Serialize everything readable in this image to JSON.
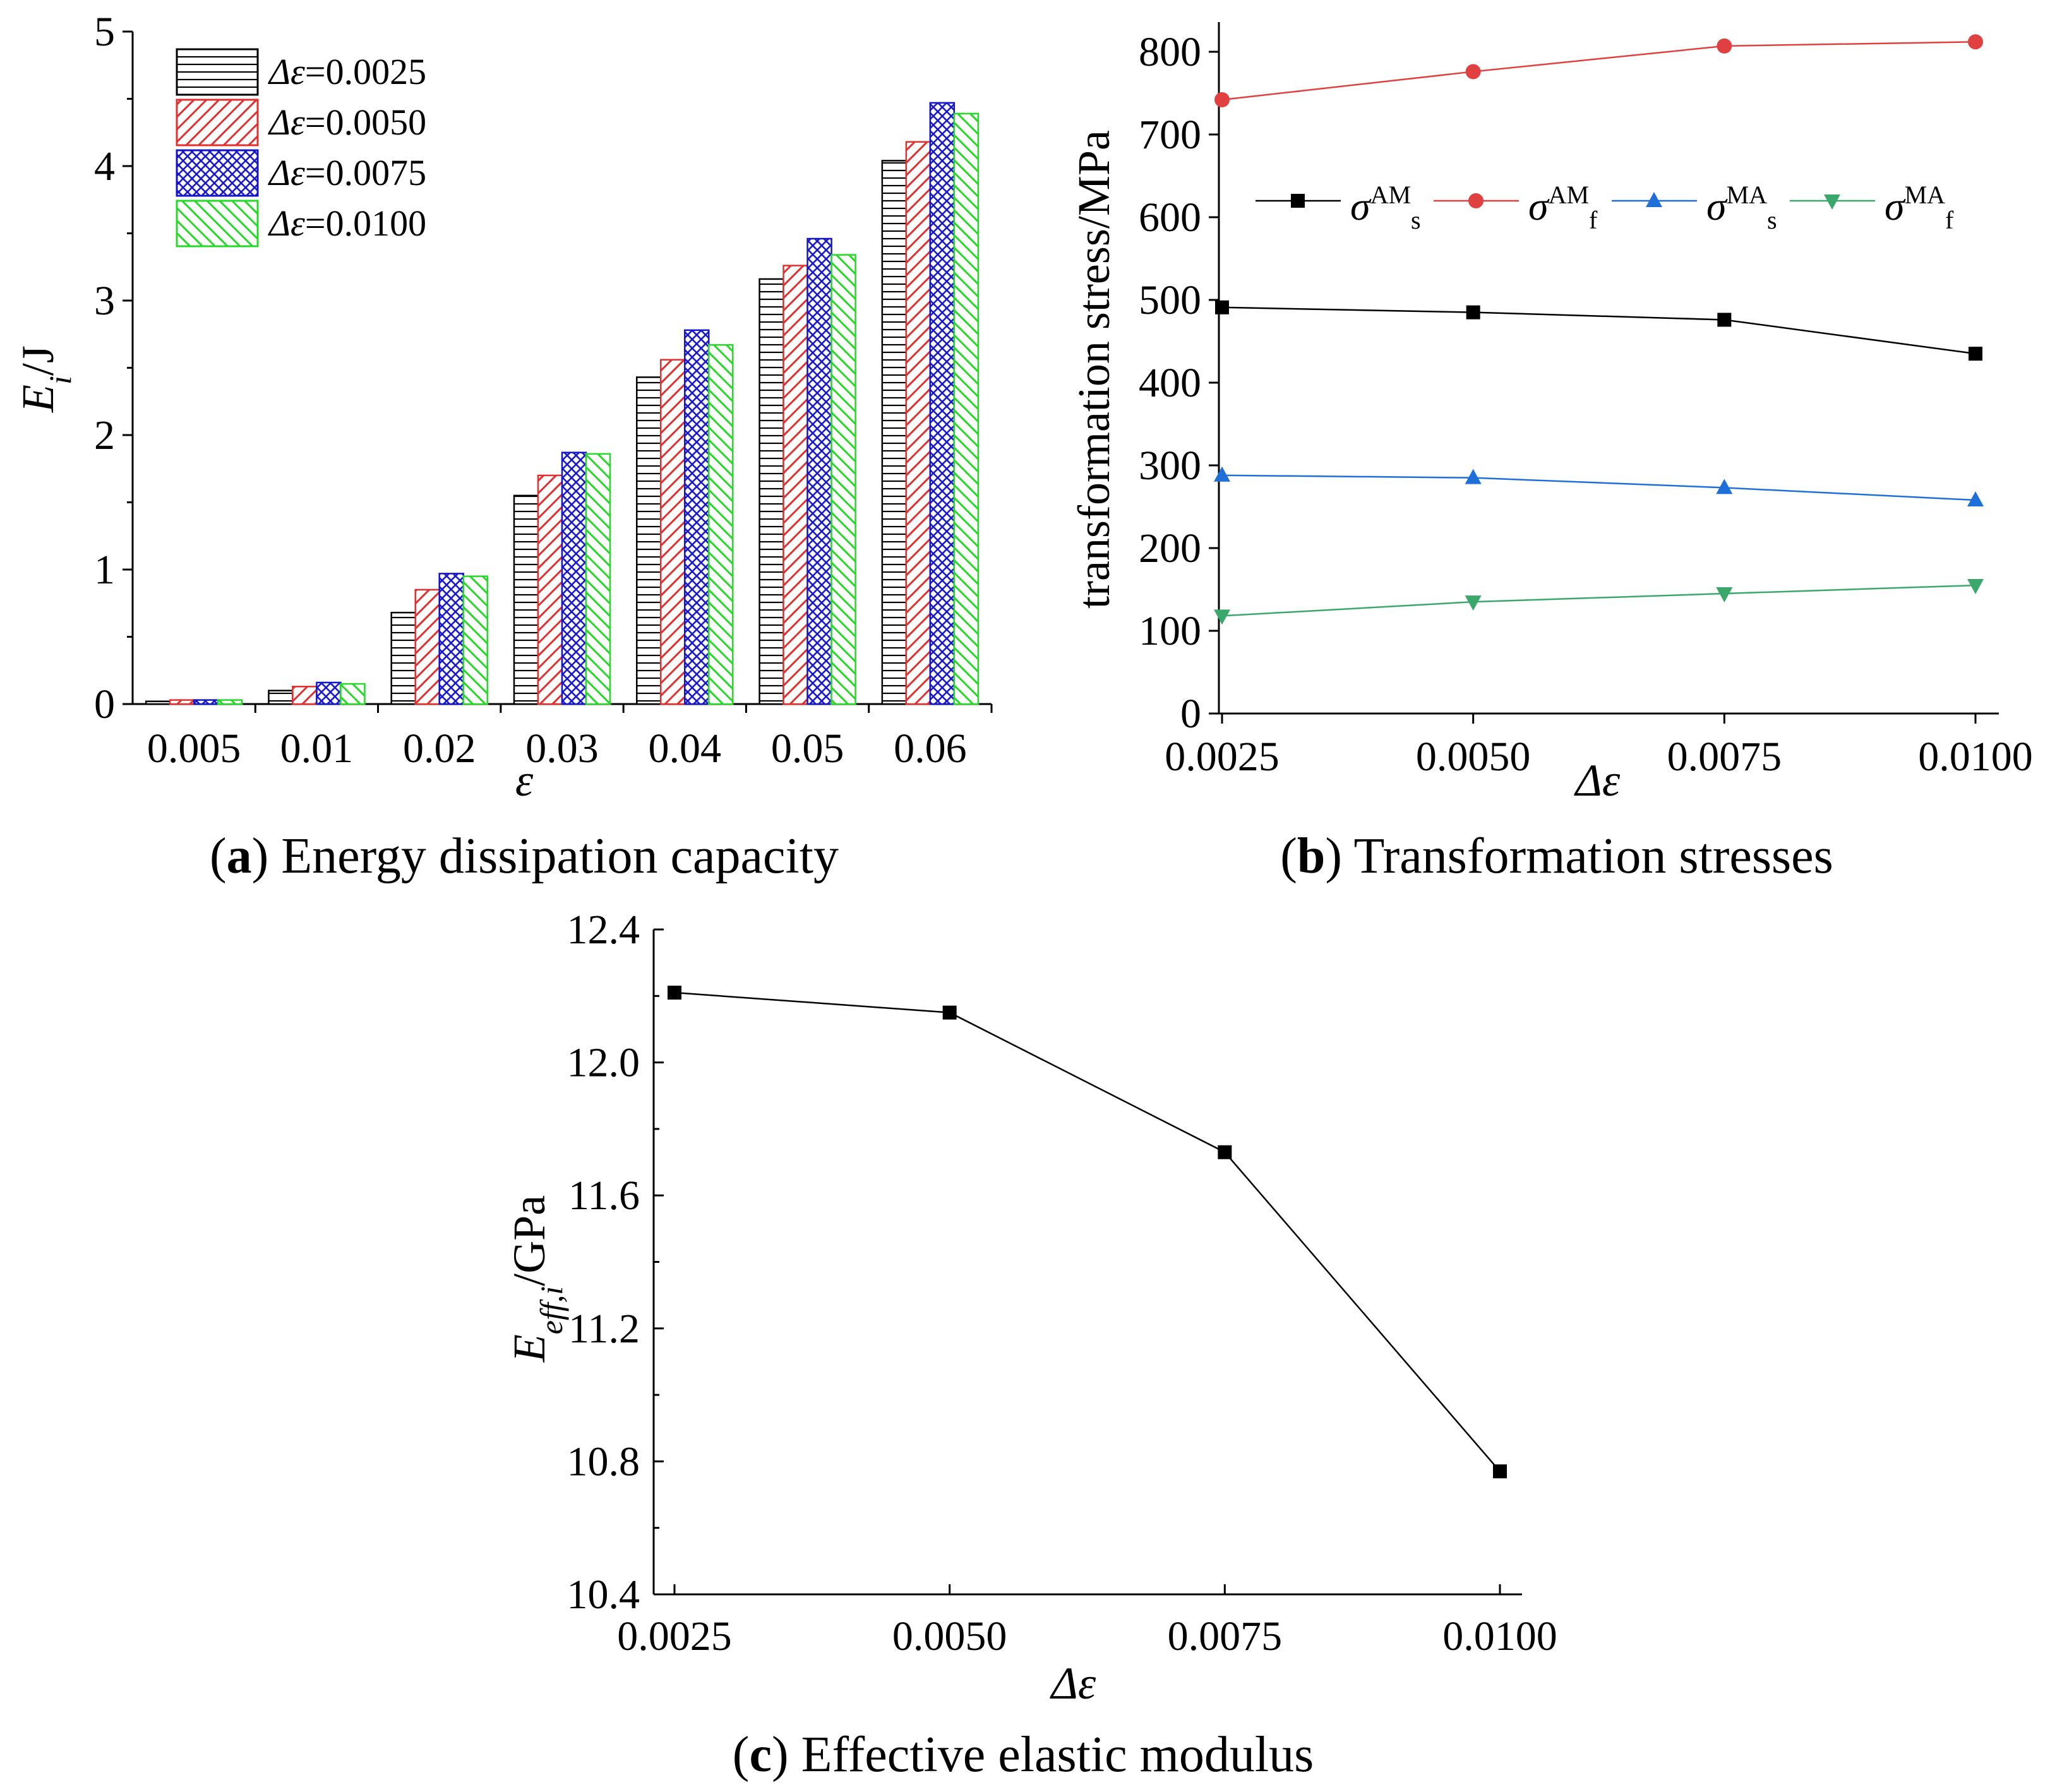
{
  "colors": {
    "axis": "#000000",
    "black": "#000000",
    "red": "#e04040",
    "blue": "#1f6fd8",
    "green": "#3aa86a",
    "bar_red": "#e03030",
    "bar_blue": "#1515c8",
    "bar_green": "#28d828"
  },
  "chart_data": [
    {
      "id": "a",
      "type": "bar",
      "caption_letter": "a",
      "caption_text": " Energy dissipation capacity",
      "xlabel": "ε",
      "ylabel": "E_i/J",
      "ylabel_main": "E",
      "ylabel_sub": "i",
      "ylabel_unit": "/J",
      "ylim": [
        0,
        5
      ],
      "yticks": [
        "0",
        "1",
        "2",
        "3",
        "4",
        "5"
      ],
      "categories": [
        "0.005",
        "0.01",
        "0.02",
        "0.03",
        "0.04",
        "0.05",
        "0.06"
      ],
      "series": [
        {
          "name": "Δε=0.0025",
          "prefix": "Δε",
          "suffix": "=0.0025",
          "values": [
            0.02,
            0.1,
            0.68,
            1.55,
            2.43,
            3.16,
            4.04
          ]
        },
        {
          "name": "Δε=0.0050",
          "prefix": "Δε",
          "suffix": "=0.0050",
          "values": [
            0.03,
            0.13,
            0.85,
            1.7,
            2.56,
            3.26,
            4.18
          ]
        },
        {
          "name": "Δε=0.0075",
          "prefix": "Δε",
          "suffix": "=0.0075",
          "values": [
            0.03,
            0.16,
            0.97,
            1.87,
            2.78,
            3.46,
            4.47
          ]
        },
        {
          "name": "Δε=0.0100",
          "prefix": "Δε",
          "suffix": "=0.0100",
          "values": [
            0.03,
            0.15,
            0.95,
            1.86,
            2.67,
            3.34,
            4.39
          ]
        }
      ],
      "legend_position": "top-left"
    },
    {
      "id": "b",
      "type": "line",
      "caption_letter": "b",
      "caption_text": " Transformation stresses",
      "xlabel": "Δε",
      "ylabel": "transformation stress/MPa",
      "ylim": [
        0,
        800
      ],
      "yticks": [
        "0",
        "100",
        "200",
        "300",
        "400",
        "500",
        "600",
        "700",
        "800"
      ],
      "x": [
        0.0025,
        0.005,
        0.0075,
        0.01
      ],
      "xticks": [
        "0.0025",
        "0.0050",
        "0.0075",
        "0.0100"
      ],
      "series": [
        {
          "name": "σ^AM_s",
          "base": "σ",
          "sup": "AM",
          "sub": "s",
          "marker": "square",
          "values": [
            491,
            485,
            476,
            435
          ]
        },
        {
          "name": "σ^AM_f",
          "base": "σ",
          "sup": "AM",
          "sub": "f",
          "marker": "circle",
          "values": [
            742,
            776,
            807,
            812
          ]
        },
        {
          "name": "σ^MA_s",
          "base": "σ",
          "sup": "MA",
          "sub": "s",
          "marker": "triangle-up",
          "values": [
            288,
            285,
            273,
            258
          ]
        },
        {
          "name": "σ^MA_f",
          "base": "σ",
          "sup": "MA",
          "sub": "f",
          "marker": "triangle-down",
          "values": [
            118,
            135,
            145,
            155
          ]
        }
      ],
      "legend_position": "upper-middle"
    },
    {
      "id": "c",
      "type": "line",
      "caption_letter": "c",
      "caption_text": " Effective elastic modulus",
      "xlabel": "Δε",
      "ylabel": "E_eff,i/GPa",
      "ylabel_main": "E",
      "ylabel_sub": "eff,i",
      "ylabel_unit": "/GPa",
      "ylim": [
        10.4,
        12.4
      ],
      "yticks": [
        "10.4",
        "10.8",
        "11.2",
        "11.6",
        "12.0",
        "12.4"
      ],
      "x": [
        0.0025,
        0.005,
        0.0075,
        0.01
      ],
      "xticks": [
        "0.0025",
        "0.0050",
        "0.0075",
        "0.0100"
      ],
      "series": [
        {
          "name": "E_eff,i",
          "marker": "square",
          "values": [
            12.21,
            12.15,
            11.73,
            10.77
          ]
        }
      ]
    }
  ]
}
